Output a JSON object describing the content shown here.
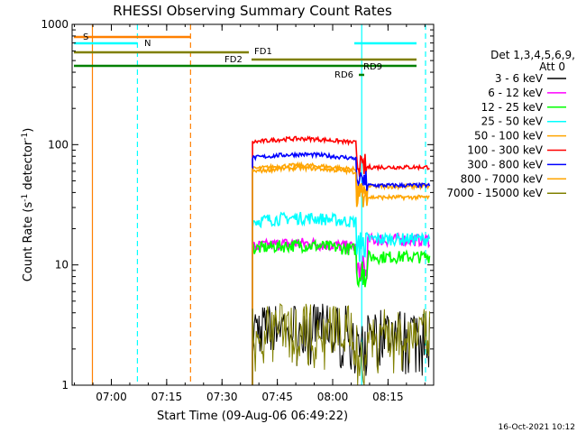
{
  "chart_data": {
    "type": "line",
    "title": "RHESSI Observing Summary Count Rates",
    "xlabel": "Start Time (09-Aug-06 06:49:22)",
    "ylabel_parts": [
      "Count Rate (s",
      "-1",
      " detector",
      "-1",
      ")"
    ],
    "y_scale": "log",
    "ylim": [
      1,
      1000
    ],
    "xlim_minutes": [
      0,
      98
    ],
    "grid": false,
    "y_ticks": [
      {
        "value": 1,
        "label": "1"
      },
      {
        "value": 10,
        "label": "10"
      },
      {
        "value": 100,
        "label": "100"
      },
      {
        "value": 1000,
        "label": "1000"
      }
    ],
    "x_ticks": [
      {
        "label": "07:00",
        "minutes": 10.63
      },
      {
        "label": "07:15",
        "minutes": 25.63
      },
      {
        "label": "07:30",
        "minutes": 40.63
      },
      {
        "label": "07:45",
        "minutes": 55.63
      },
      {
        "label": "08:00",
        "minutes": 70.63
      },
      {
        "label": "08:15",
        "minutes": 85.63
      }
    ],
    "legend": {
      "header": [
        "Det 1,3,4,5,6,9,",
        "Att 0"
      ],
      "placement": "right"
    },
    "series": [
      {
        "name": "3 - 6 keV",
        "color": "#000000",
        "level": 3.0,
        "noise": "high"
      },
      {
        "name": "6 - 12 keV",
        "color": "#ff00ff",
        "level": 13.5,
        "noise": "medium"
      },
      {
        "name": "12 - 25 keV",
        "color": "#00ff00",
        "level": 13.0,
        "noise": "medium"
      },
      {
        "name": "25 - 50 keV",
        "color": "#00ffff",
        "level": 22.0,
        "noise": "medium"
      },
      {
        "name": "50 - 100 keV",
        "color": "#ffa500",
        "level": 60.0,
        "noise": "low"
      },
      {
        "name": "100 - 300 keV",
        "color": "#ff0000",
        "level": 100.0,
        "noise": "low"
      },
      {
        "name": "300 - 800 keV",
        "color": "#0000ff",
        "level": 74.0,
        "noise": "low"
      },
      {
        "name": "800 - 7000 keV",
        "color": "#ffa500",
        "level": 57.0,
        "noise": "low"
      },
      {
        "name": "7000 - 15000 keV",
        "color": "#808000",
        "level": 3.0,
        "noise": "high"
      }
    ],
    "data_window_minutes": [
      48.9,
      97
    ],
    "annotations": [
      {
        "label": "S",
        "color": "#ff8000"
      },
      {
        "label": "N",
        "color": "#00ffff"
      },
      {
        "label": "FD1",
        "color": "#808000"
      },
      {
        "label": "FD2",
        "color": "#808000"
      },
      {
        "label": "RD9",
        "color": "#008000"
      },
      {
        "label": "RD6",
        "color": "#008000"
      }
    ],
    "vertical_markers": [
      {
        "minutes": 5.5,
        "color": "#ff8000",
        "style": "solid"
      },
      {
        "minutes": 17.7,
        "color": "#00ffff",
        "style": "dashed"
      },
      {
        "minutes": 32.1,
        "color": "#ff8000",
        "style": "dashed"
      },
      {
        "minutes": 78.5,
        "color": "#00ffff",
        "style": "solid"
      },
      {
        "minutes": 95.8,
        "color": "#00ffff",
        "style": "dashed"
      }
    ]
  },
  "footer": {
    "date_stamp": "16-Oct-2021 10:12"
  }
}
